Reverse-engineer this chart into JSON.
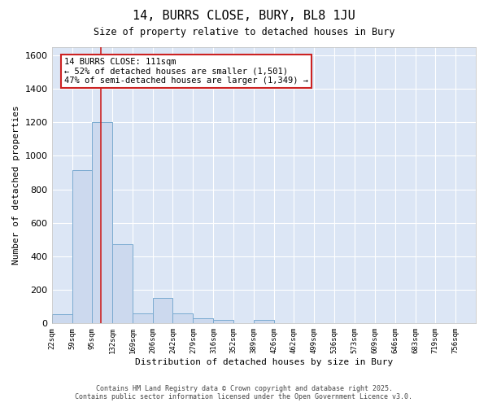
{
  "title": "14, BURRS CLOSE, BURY, BL8 1JU",
  "subtitle": "Size of property relative to detached houses in Bury",
  "xlabel": "Distribution of detached houses by size in Bury",
  "ylabel": "Number of detached properties",
  "bar_color": "#ccd9ee",
  "bar_edge_color": "#7aaad0",
  "background_color": "#dce6f5",
  "grid_color": "#ffffff",
  "fig_background": "#ffffff",
  "categories": [
    "22sqm",
    "59sqm",
    "95sqm",
    "132sqm",
    "169sqm",
    "206sqm",
    "242sqm",
    "279sqm",
    "316sqm",
    "352sqm",
    "389sqm",
    "426sqm",
    "462sqm",
    "499sqm",
    "536sqm",
    "573sqm",
    "609sqm",
    "646sqm",
    "683sqm",
    "719sqm",
    "756sqm"
  ],
  "values": [
    57,
    912,
    1200,
    475,
    60,
    150,
    60,
    30,
    20,
    0,
    20,
    0,
    0,
    0,
    0,
    0,
    0,
    0,
    0,
    0,
    0
  ],
  "bin_edges": [
    22,
    59,
    95,
    132,
    169,
    206,
    242,
    279,
    316,
    352,
    389,
    426,
    462,
    499,
    536,
    573,
    609,
    646,
    683,
    719,
    756,
    793
  ],
  "vline_x": 111,
  "vline_color": "#cc2222",
  "annotation_text": "14 BURRS CLOSE: 111sqm\n← 52% of detached houses are smaller (1,501)\n47% of semi-detached houses are larger (1,349) →",
  "annotation_box_color": "#ffffff",
  "annotation_box_edge_color": "#cc2222",
  "ylim": [
    0,
    1650
  ],
  "yticks": [
    0,
    200,
    400,
    600,
    800,
    1000,
    1200,
    1400,
    1600
  ],
  "footer_line1": "Contains HM Land Registry data © Crown copyright and database right 2025.",
  "footer_line2": "Contains public sector information licensed under the Open Government Licence v3.0."
}
